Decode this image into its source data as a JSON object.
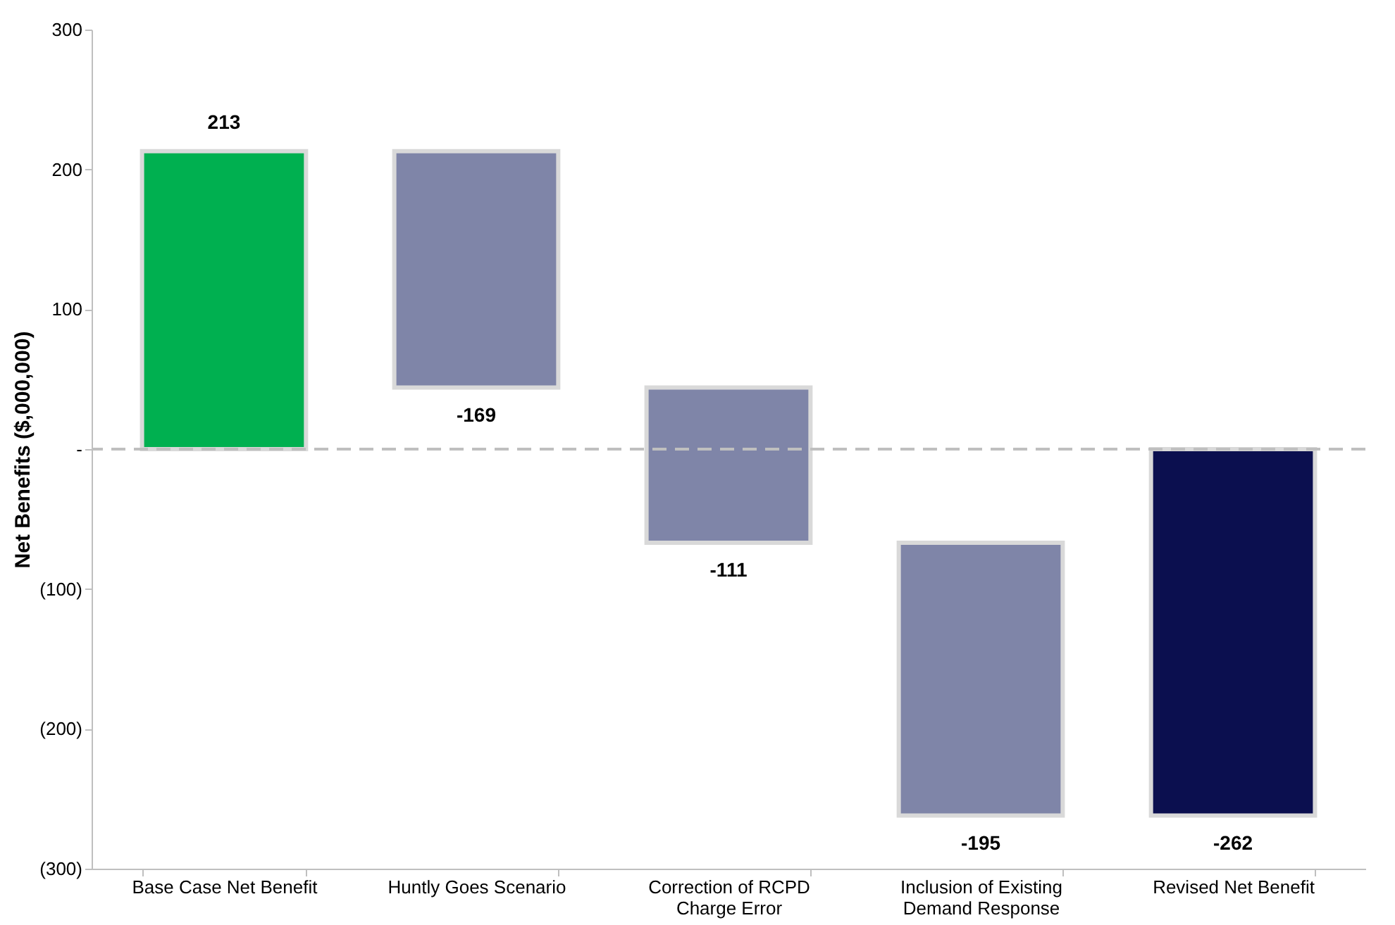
{
  "chart_data": {
    "type": "bar",
    "ylabel": "Net Benefits ($,000,000)",
    "categories": [
      "Base Case Net Benefit",
      "Huntly Goes Scenario",
      "Correction of RCPD Charge Error",
      "Inclusion of Existing Demand Response",
      "Revised Net Benefit"
    ],
    "values": [
      213,
      -169,
      -111,
      -195,
      -262
    ],
    "base": [
      0,
      213,
      44,
      -67,
      0
    ],
    "colors": [
      "#00b050",
      "#7f85a8",
      "#7f85a8",
      "#7f85a8",
      "#0b0f4f"
    ],
    "ylim": [
      -300,
      300
    ],
    "yticks": [
      {
        "value": -300,
        "label": "(300)"
      },
      {
        "value": -200,
        "label": "(200)"
      },
      {
        "value": -100,
        "label": "(100)"
      },
      {
        "value": 0,
        "label": "-"
      },
      {
        "value": 100,
        "label": "100"
      },
      {
        "value": 200,
        "label": "200"
      },
      {
        "value": 300,
        "label": "300"
      }
    ],
    "ref_lines": [
      {
        "axis": "y",
        "value": 0,
        "color": "#bfbfbf",
        "line_style": "dashed"
      }
    ],
    "data_labels": true,
    "grid": false
  }
}
